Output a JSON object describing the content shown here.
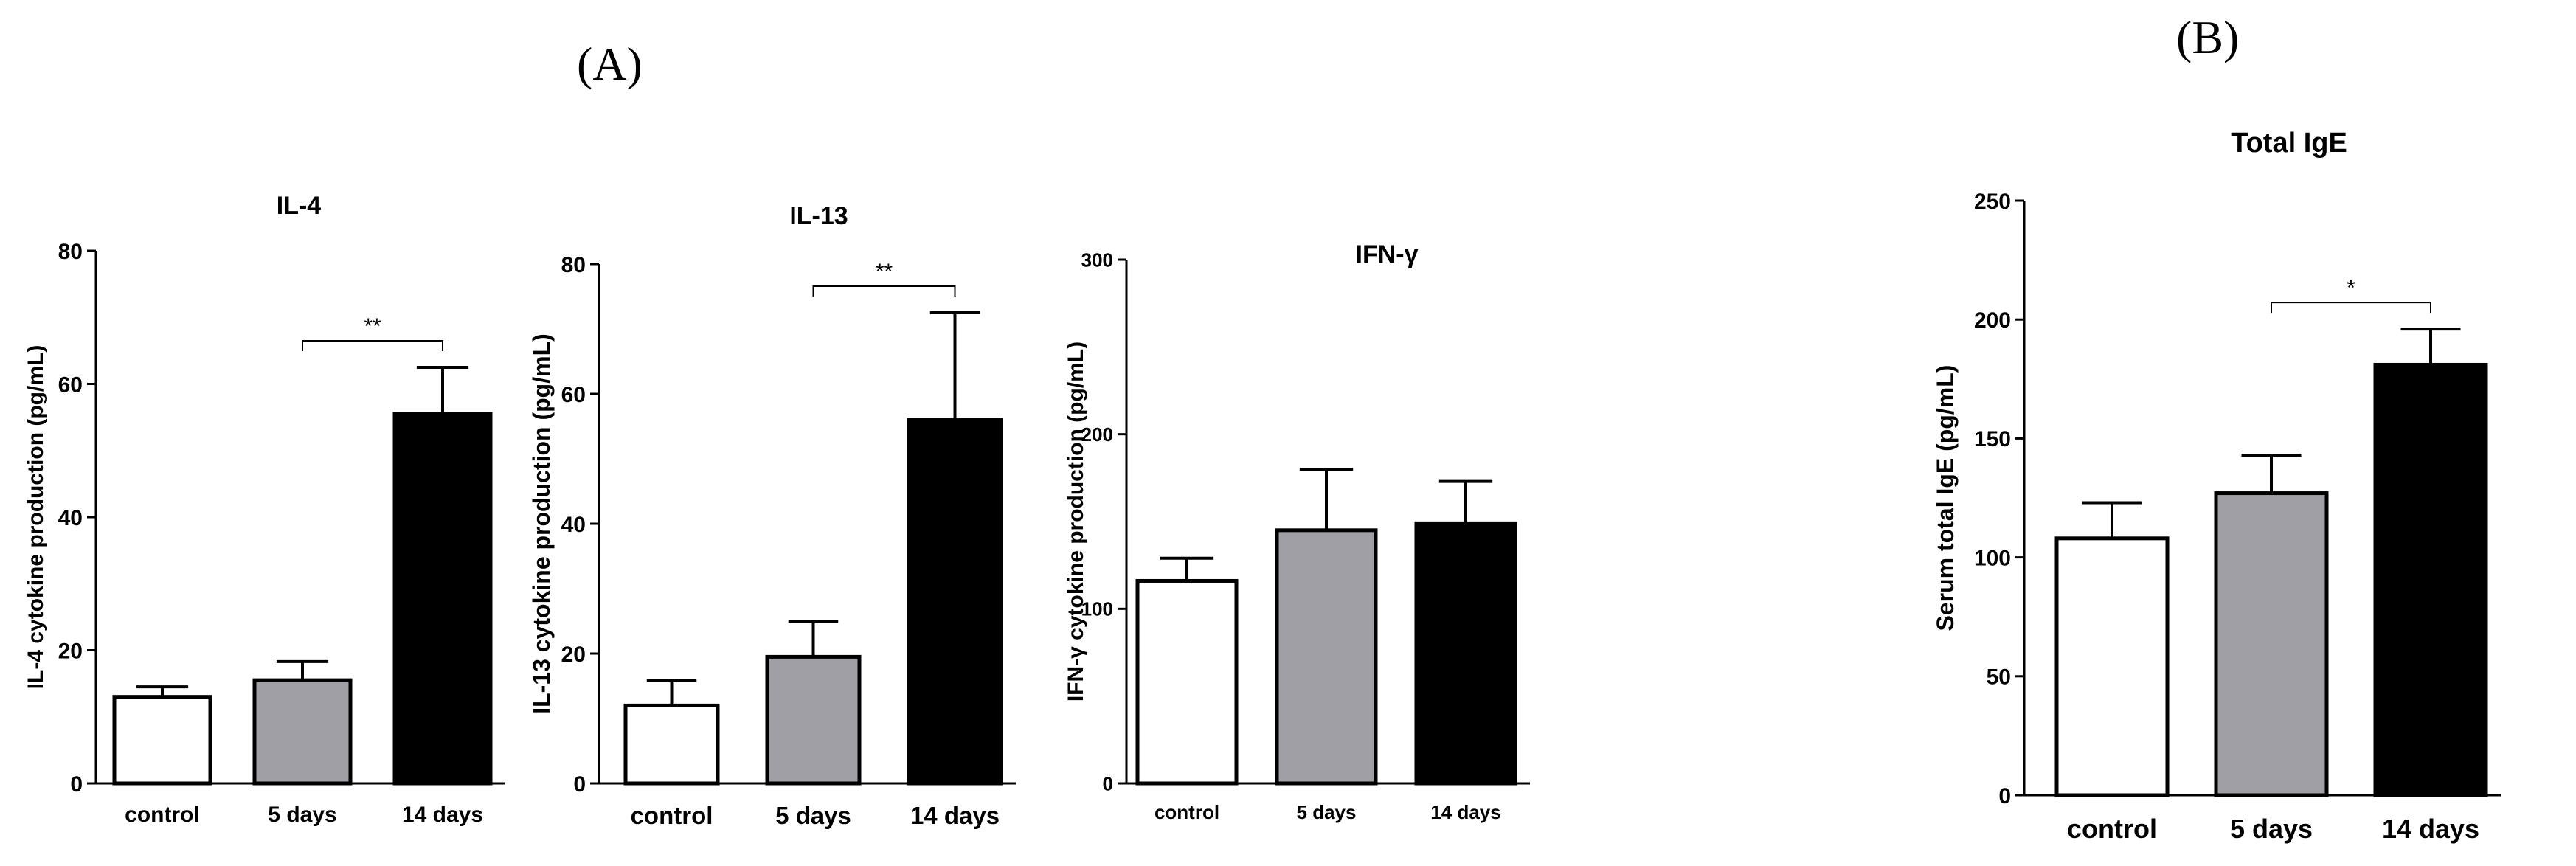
{
  "figure": {
    "panel_a_label": "(A)",
    "panel_b_label": "(B)"
  },
  "chart_data": [
    {
      "type": "bar",
      "title": "IL-4",
      "ylabel": "IL-4 cytokine production (pg/mL)",
      "xlabel": "",
      "categories": [
        "control",
        "5 days",
        "14 days"
      ],
      "values": [
        13,
        15.5,
        55.5
      ],
      "errors": [
        1.5,
        2.8,
        7
      ],
      "bar_colors": [
        "#ffffff",
        "#a09fa5",
        "#000000"
      ],
      "ylim": [
        0,
        80
      ],
      "yticks": [
        0,
        20,
        40,
        60,
        80
      ],
      "significance": [
        {
          "from": 1,
          "to": 2,
          "label": "**"
        }
      ]
    },
    {
      "type": "bar",
      "title": "IL-13",
      "ylabel": "IL-13 cytokine production (pg/mL)",
      "xlabel": "",
      "categories": [
        "control",
        "5 days",
        "14 days"
      ],
      "values": [
        12,
        19.5,
        56
      ],
      "errors": [
        3.8,
        5.5,
        16.5
      ],
      "bar_colors": [
        "#ffffff",
        "#a09fa5",
        "#000000"
      ],
      "ylim": [
        0,
        80
      ],
      "yticks": [
        0,
        20,
        40,
        60,
        80
      ],
      "significance": [
        {
          "from": 1,
          "to": 2,
          "label": "**"
        }
      ]
    },
    {
      "type": "bar",
      "title": "IFN-γ",
      "ylabel": "IFN-γ cytokine production (pg/mL)",
      "xlabel": "",
      "categories": [
        "control",
        "5 days",
        "14 days"
      ],
      "values": [
        116,
        145,
        149
      ],
      "errors": [
        13,
        35,
        24
      ],
      "bar_colors": [
        "#ffffff",
        "#a09fa5",
        "#000000"
      ],
      "ylim": [
        0,
        300
      ],
      "yticks": [
        0,
        100,
        200,
        300
      ],
      "significance": []
    },
    {
      "type": "bar",
      "title": "Total IgE",
      "ylabel": "Serum total IgE (pg/mL)",
      "xlabel": "",
      "categories": [
        "control",
        "5 days",
        "14 days"
      ],
      "values": [
        108,
        127,
        181
      ],
      "errors": [
        15,
        16,
        15
      ],
      "bar_colors": [
        "#ffffff",
        "#a09fa5",
        "#000000"
      ],
      "ylim": [
        0,
        250
      ],
      "yticks": [
        0,
        50,
        100,
        150,
        200,
        250
      ],
      "significance": [
        {
          "from": 1,
          "to": 2,
          "label": "*"
        }
      ]
    }
  ]
}
